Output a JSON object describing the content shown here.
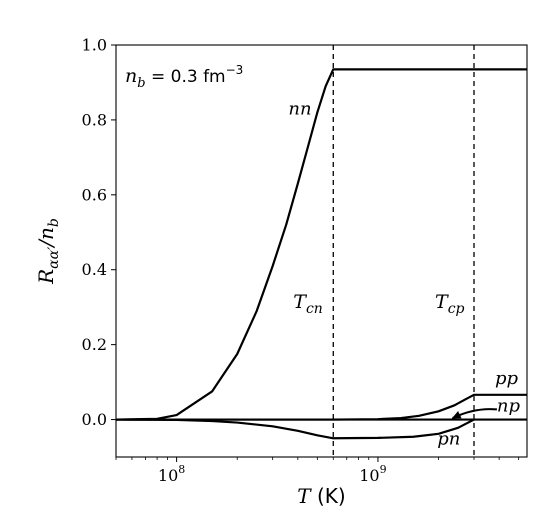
{
  "chart_data": {
    "type": "line",
    "x_scale": "log",
    "xlim": [
      50000000,
      5500000000
    ],
    "ylim": [
      -0.1,
      1.0
    ],
    "xlabel_var": "T",
    "xlabel_unit": "(K)",
    "ylabel_main": "R",
    "ylabel_sub": "αα′",
    "ylabel_tail": "/n",
    "ylabel_tail_sub": "b",
    "x_ticks": [
      {
        "value": 100000000,
        "base": "10",
        "exp": "8"
      },
      {
        "value": 1000000000,
        "base": "10",
        "exp": "9"
      }
    ],
    "y_ticks": [
      {
        "value": 0.0,
        "label": "0.0"
      },
      {
        "value": 0.2,
        "label": "0.2"
      },
      {
        "value": 0.4,
        "label": "0.4"
      },
      {
        "value": 0.6,
        "label": "0.6"
      },
      {
        "value": 0.8,
        "label": "0.8"
      },
      {
        "value": 1.0,
        "label": "1.0"
      }
    ],
    "annotation": {
      "var": "n",
      "sub": "b",
      "eq": " = 0.3 fm",
      "sup": "−3"
    },
    "vlines": [
      {
        "x": 600000000,
        "label_main": "T",
        "label_sub": "cn"
      },
      {
        "x": 3000000000,
        "label_main": "T",
        "label_sub": "cp"
      }
    ],
    "series": [
      {
        "name": "nn",
        "x": [
          50000000,
          80000000,
          100000000,
          150000000,
          200000000,
          250000000,
          300000000,
          350000000,
          400000000,
          450000000,
          500000000,
          550000000,
          600000000,
          5500000000
        ],
        "y": [
          0.0,
          0.002,
          0.012,
          0.075,
          0.175,
          0.29,
          0.41,
          0.52,
          0.63,
          0.73,
          0.82,
          0.89,
          0.935,
          0.935
        ]
      },
      {
        "name": "pp",
        "x": [
          50000000,
          600000000,
          1000000000,
          1300000000,
          1600000000,
          2000000000,
          2400000000,
          2700000000,
          3000000000,
          5500000000
        ],
        "y": [
          0.0,
          0.0,
          0.001,
          0.004,
          0.01,
          0.022,
          0.038,
          0.053,
          0.066,
          0.066
        ]
      },
      {
        "name": "np",
        "x": [
          50000000,
          5500000000
        ],
        "y": [
          0.0,
          0.0
        ]
      },
      {
        "name": "pn",
        "x": [
          50000000,
          80000000,
          100000000,
          150000000,
          200000000,
          300000000,
          400000000,
          500000000,
          600000000,
          1000000000,
          1500000000,
          2000000000,
          2500000000,
          3000000000
        ],
        "y": [
          0.0,
          -0.0005,
          -0.001,
          -0.004,
          -0.008,
          -0.018,
          -0.03,
          -0.042,
          -0.05,
          -0.049,
          -0.046,
          -0.038,
          -0.022,
          0.0
        ]
      }
    ],
    "series_labels": [
      {
        "name": "nn",
        "x": 410000000,
        "y": 0.815
      },
      {
        "name": "pp",
        "x": 4350000000,
        "y": 0.095
      },
      {
        "name": "np",
        "x": 4450000000,
        "y": 0.022
      },
      {
        "name": "pn",
        "x": 2250000000,
        "y": -0.067
      }
    ],
    "arrow": {
      "from_x": 3900000000,
      "from_y": 0.027,
      "to_x": 2350000000,
      "to_y": 0.004
    },
    "grid": false,
    "legend": "none"
  }
}
